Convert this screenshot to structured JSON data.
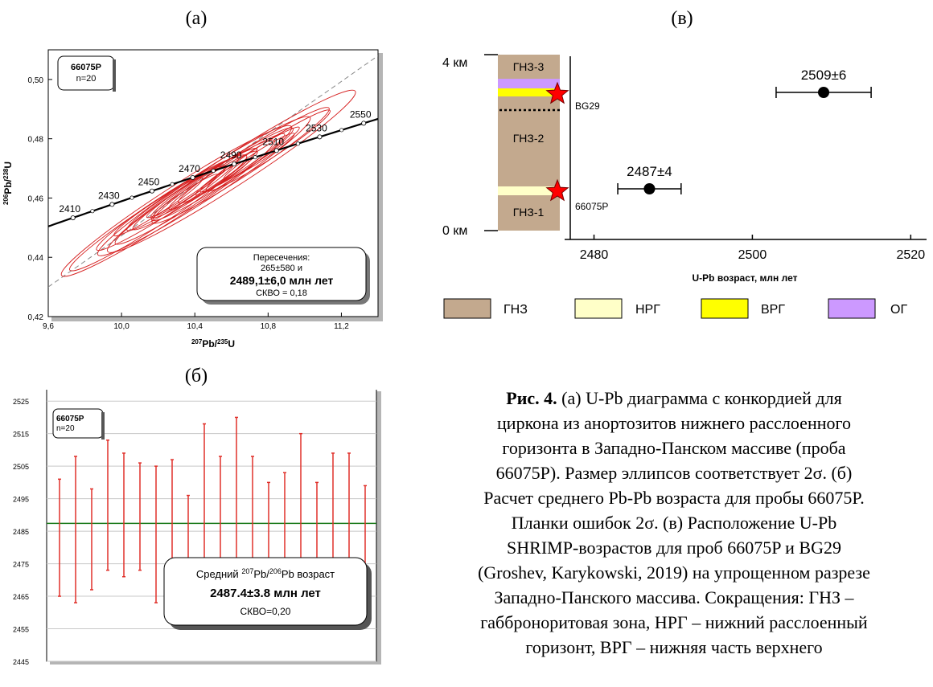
{
  "panels": {
    "a_label": "(а)",
    "b_label": "(б)",
    "c_label": "(в)"
  },
  "colors": {
    "ellipse": "#d62020",
    "errorbar": "#e0302a",
    "mean_line": "#1a7a1a",
    "gnz": "#c3a98e",
    "nrg": "#ffffc8",
    "vrg": "#ffff00",
    "og": "#cc99ff",
    "star": "#ff0000"
  },
  "chart_data": [
    {
      "type": "scatter",
      "subtype": "concordia",
      "xlabel_parts": [
        "207",
        "Pb/",
        "235",
        "U"
      ],
      "ylabel_parts": [
        "206",
        "Pb/",
        "238",
        "U"
      ],
      "xlim": [
        9.6,
        11.4
      ],
      "ylim": [
        0.42,
        0.51
      ],
      "x_ticks": [
        9.6,
        10.0,
        10.4,
        10.8,
        11.2
      ],
      "x_tick_labels": [
        "9,6",
        "10,0",
        "10,4",
        "10,8",
        "11,2"
      ],
      "y_ticks": [
        0.42,
        0.44,
        0.46,
        0.48,
        0.5
      ],
      "y_tick_labels": [
        "0,42",
        "0,44",
        "0,46",
        "0,48",
        "0,50"
      ],
      "sample_box": {
        "sample": "66075P",
        "n": "n=20"
      },
      "concordia_ages": [
        2410,
        2430,
        2450,
        2470,
        2490,
        2510,
        2530,
        2550
      ],
      "concordia_ages_labeled": [
        "2410",
        "2430",
        "2450",
        "2470",
        "2490",
        "2510",
        "2530",
        "2550"
      ],
      "ellipses": [
        {
          "x": 10.2,
          "y": 0.457,
          "sx": 0.25,
          "sy": 0.006
        },
        {
          "x": 10.3,
          "y": 0.46,
          "sx": 0.28,
          "sy": 0.007
        },
        {
          "x": 10.35,
          "y": 0.462,
          "sx": 0.22,
          "sy": 0.005
        },
        {
          "x": 10.45,
          "y": 0.465,
          "sx": 0.3,
          "sy": 0.007
        },
        {
          "x": 10.4,
          "y": 0.463,
          "sx": 0.35,
          "sy": 0.008
        },
        {
          "x": 10.5,
          "y": 0.466,
          "sx": 0.25,
          "sy": 0.006
        },
        {
          "x": 10.55,
          "y": 0.468,
          "sx": 0.4,
          "sy": 0.009
        },
        {
          "x": 10.6,
          "y": 0.47,
          "sx": 0.3,
          "sy": 0.007
        },
        {
          "x": 10.25,
          "y": 0.458,
          "sx": 0.4,
          "sy": 0.009
        },
        {
          "x": 10.7,
          "y": 0.473,
          "sx": 0.28,
          "sy": 0.006
        },
        {
          "x": 10.35,
          "y": 0.461,
          "sx": 0.18,
          "sy": 0.004
        },
        {
          "x": 10.65,
          "y": 0.471,
          "sx": 0.5,
          "sy": 0.011
        },
        {
          "x": 10.8,
          "y": 0.476,
          "sx": 0.35,
          "sy": 0.008
        },
        {
          "x": 10.2,
          "y": 0.455,
          "sx": 0.5,
          "sy": 0.011
        },
        {
          "x": 10.45,
          "y": 0.464,
          "sx": 0.6,
          "sy": 0.013
        },
        {
          "x": 10.75,
          "y": 0.474,
          "sx": 0.2,
          "sy": 0.005
        },
        {
          "x": 10.3,
          "y": 0.459,
          "sx": 0.65,
          "sy": 0.014
        },
        {
          "x": 10.55,
          "y": 0.467,
          "sx": 0.15,
          "sy": 0.004
        },
        {
          "x": 10.6,
          "y": 0.469,
          "sx": 0.7,
          "sy": 0.015
        },
        {
          "x": 10.4,
          "y": 0.462,
          "sx": 0.45,
          "sy": 0.01
        }
      ],
      "result_box": {
        "line1": "Пересечения:",
        "line2": "265±580 и",
        "line3": "2489,1±6,0 млн лет",
        "line4": "СКВО = 0,18"
      }
    },
    {
      "type": "bar",
      "subtype": "error-bars",
      "ylim": [
        2445,
        2529
      ],
      "y_ticks": [
        2445,
        2455,
        2465,
        2475,
        2485,
        2495,
        2505,
        2515,
        2525
      ],
      "y_tick_labels": [
        "2445",
        "2455",
        "2465",
        "2475",
        "2485",
        "2495",
        "2505",
        "2515",
        "2525"
      ],
      "mean": 2487.4,
      "sample_box": {
        "sample": "66075P",
        "n": "n=20"
      },
      "bars": [
        {
          "low": 2465,
          "high": 2501
        },
        {
          "low": 2463,
          "high": 2508
        },
        {
          "low": 2467,
          "high": 2498
        },
        {
          "low": 2473,
          "high": 2513
        },
        {
          "low": 2471,
          "high": 2509
        },
        {
          "low": 2473,
          "high": 2506
        },
        {
          "low": 2463,
          "high": 2505
        },
        {
          "low": 2476,
          "high": 2507
        },
        {
          "low": 2473,
          "high": 2496
        },
        {
          "low": 2476,
          "high": 2518
        },
        {
          "low": 2464,
          "high": 2508
        },
        {
          "low": 2472,
          "high": 2520
        },
        {
          "low": 2468,
          "high": 2508
        },
        {
          "low": 2465,
          "high": 2500
        },
        {
          "low": 2465,
          "high": 2503
        },
        {
          "low": 2466,
          "high": 2515
        },
        {
          "low": 2474,
          "high": 2500
        },
        {
          "low": 2472,
          "high": 2509
        },
        {
          "low": 2471,
          "high": 2509
        },
        {
          "low": 2471,
          "high": 2499
        }
      ],
      "result_box": {
        "pre": "Средний",
        "sup1": "207",
        "mid": "Pb/",
        "sup2": "206",
        "post": "Pb возраст",
        "line2": "2487.4±3.8 млн лет",
        "line3": "СКВО=0,20"
      }
    },
    {
      "type": "scatter",
      "subtype": "section-with-ages",
      "xlim": [
        2477,
        2522
      ],
      "x_ticks": [
        2480,
        2500,
        2520
      ],
      "x_tick_labels": [
        "2480",
        "2500",
        "2520"
      ],
      "xlabel": "U-Pb возраст, млн лет",
      "y_labels": {
        "top": "4 км",
        "bottom": "0 км"
      },
      "zones": {
        "gnz3": "ГНЗ-3",
        "gnz2": "ГНЗ-2",
        "gnz1": "ГНЗ-1"
      },
      "points": [
        {
          "sample": "BG29",
          "age": 2509,
          "err": 6,
          "label": "2509±6"
        },
        {
          "sample": "66075P",
          "age": 2487,
          "err": 4,
          "label": "2487±4"
        }
      ],
      "legend": [
        {
          "key": "gnz",
          "label": "ГНЗ"
        },
        {
          "key": "nrg",
          "label": "НРГ"
        },
        {
          "key": "vrg",
          "label": "ВРГ"
        },
        {
          "key": "og",
          "label": "ОГ"
        }
      ]
    }
  ],
  "caption": {
    "bold": "Рис. 4.",
    "lines": [
      " (а) U-Pb диаграмма с конкордией для",
      "циркона из анортозитов нижнего расслоенного",
      "горизонта в Западно-Панском массиве (проба",
      "66075P). Размер эллипсов соответствует 2σ. (б)",
      "Расчет среднего Pb-Pb возраста для пробы 66075P.",
      "Планки ошибок 2σ. (в) Расположение U-Pb",
      "SHRIMP-возрастов для проб 66075P и BG29",
      "(Groshev, Karykowski, 2019) на упрощенном разрезе",
      "Западно-Панского массива. Сокращения: ГНЗ –",
      "габбронoритовая зона, НРГ – нижний расслоенный",
      "горизонт, ВРГ – нижняя часть верхнего"
    ]
  }
}
